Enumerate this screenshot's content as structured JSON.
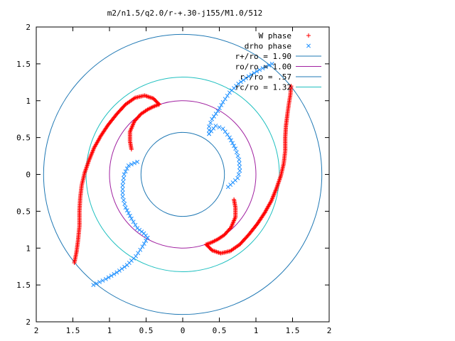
{
  "chart_data": {
    "type": "scatter",
    "title": "m2/n1.5/q2.0/r-+.30-j155/M1.0/512",
    "xlim": [
      -2,
      2
    ],
    "ylim": [
      -2,
      2
    ],
    "x_tick_values": [
      -2,
      -1.5,
      -1,
      -0.5,
      0,
      0.5,
      1,
      1.5,
      2
    ],
    "x_tick_labels": [
      "2",
      "1.5",
      "1",
      "0.5",
      "0",
      "0.5",
      "1",
      "1.5",
      "2"
    ],
    "y_tick_values": [
      2,
      1.5,
      1,
      0.5,
      0,
      -0.5,
      -1,
      -1.5,
      -2
    ],
    "y_tick_labels": [
      "2",
      "1.5",
      "1",
      "0.5",
      "0",
      "0.5",
      "1",
      "1.5",
      "2"
    ],
    "grid": false,
    "legend_position": "top-right",
    "series": [
      {
        "name": "W phase",
        "marker": "plus",
        "color": "#ff0000",
        "arms": [
          [
            [
              0.32,
              -0.95
            ],
            [
              0.4,
              -1.03
            ],
            [
              0.52,
              -1.07
            ],
            [
              0.65,
              -1.04
            ],
            [
              0.78,
              -0.95
            ],
            [
              0.9,
              -0.82
            ],
            [
              1.02,
              -0.67
            ],
            [
              1.12,
              -0.52
            ],
            [
              1.21,
              -0.36
            ],
            [
              1.28,
              -0.19
            ],
            [
              1.34,
              -0.02
            ],
            [
              1.38,
              0.15
            ],
            [
              1.4,
              0.32
            ],
            [
              1.4,
              0.5
            ],
            [
              1.41,
              0.66
            ],
            [
              1.43,
              0.82
            ],
            [
              1.45,
              0.96
            ],
            [
              1.47,
              1.08
            ],
            [
              1.48,
              1.2
            ]
          ],
          [
            [
              0.32,
              -0.95
            ],
            [
              0.4,
              -0.92
            ],
            [
              0.48,
              -0.88
            ],
            [
              0.57,
              -0.82
            ],
            [
              0.66,
              -0.72
            ],
            [
              0.72,
              -0.58
            ],
            [
              0.72,
              -0.45
            ],
            [
              0.7,
              -0.34
            ]
          ],
          [
            [
              -1.48,
              -1.2
            ],
            [
              -1.45,
              -1.05
            ],
            [
              -1.43,
              -0.9
            ],
            [
              -1.41,
              -0.7
            ],
            [
              -1.41,
              -0.5
            ],
            [
              -1.4,
              -0.32
            ],
            [
              -1.38,
              -0.15
            ],
            [
              -1.34,
              0.02
            ],
            [
              -1.28,
              0.19
            ],
            [
              -1.21,
              0.36
            ],
            [
              -1.12,
              0.52
            ],
            [
              -1.02,
              0.67
            ],
            [
              -0.9,
              0.82
            ],
            [
              -0.78,
              0.95
            ],
            [
              -0.65,
              1.04
            ],
            [
              -0.52,
              1.07
            ],
            [
              -0.4,
              1.03
            ],
            [
              -0.32,
              0.95
            ]
          ],
          [
            [
              -0.32,
              0.95
            ],
            [
              -0.4,
              0.92
            ],
            [
              -0.48,
              0.88
            ],
            [
              -0.57,
              0.82
            ],
            [
              -0.66,
              0.72
            ],
            [
              -0.72,
              0.58
            ],
            [
              -0.72,
              0.45
            ],
            [
              -0.7,
              0.34
            ]
          ]
        ]
      },
      {
        "name": "drho phase",
        "marker": "x",
        "color": "#1e90ff",
        "arms": [
          [
            [
              -1.22,
              -1.5
            ],
            [
              -1.05,
              -1.42
            ],
            [
              -0.9,
              -1.33
            ],
            [
              -0.76,
              -1.23
            ],
            [
              -0.64,
              -1.11
            ],
            [
              -0.55,
              -0.98
            ],
            [
              -0.48,
              -0.86
            ]
          ],
          [
            [
              -0.48,
              -0.86
            ],
            [
              -0.53,
              -0.8
            ],
            [
              -0.62,
              -0.73
            ],
            [
              -0.7,
              -0.6
            ],
            [
              -0.78,
              -0.45
            ],
            [
              -0.82,
              -0.3
            ],
            [
              -0.82,
              -0.15
            ],
            [
              -0.8,
              0.0
            ],
            [
              -0.74,
              0.12
            ],
            [
              -0.62,
              0.17
            ]
          ],
          [
            [
              1.22,
              1.5
            ],
            [
              1.05,
              1.42
            ],
            [
              0.9,
              1.33
            ],
            [
              0.76,
              1.23
            ],
            [
              0.64,
              1.11
            ],
            [
              0.55,
              0.98
            ],
            [
              0.48,
              0.86
            ],
            [
              0.4,
              0.75
            ],
            [
              0.36,
              0.65
            ],
            [
              0.36,
              0.55
            ]
          ],
          [
            [
              0.36,
              0.55
            ],
            [
              0.45,
              0.66
            ],
            [
              0.55,
              0.62
            ],
            [
              0.64,
              0.5
            ],
            [
              0.72,
              0.35
            ],
            [
              0.77,
              0.2
            ],
            [
              0.78,
              0.05
            ],
            [
              0.75,
              -0.05
            ],
            [
              0.62,
              -0.17
            ]
          ]
        ]
      }
    ],
    "circles": [
      {
        "label": "r+/ro = 1.90",
        "radius": 1.9,
        "color": "#1f78b4"
      },
      {
        "label": "ro/ro = 1.00",
        "radius": 1.0,
        "color": "#a020a0"
      },
      {
        "label": "r-/ro = .57",
        "radius": 0.57,
        "color": "#1f78b4"
      },
      {
        "label": "rc/ro = 1.32",
        "radius": 1.32,
        "color": "#20c0c0"
      }
    ]
  }
}
